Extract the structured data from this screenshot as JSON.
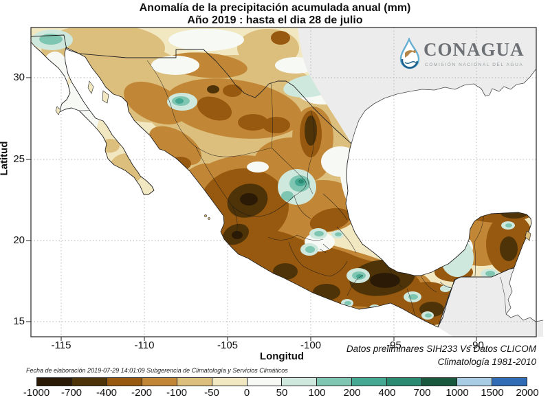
{
  "title": {
    "line1": "Anomalía de la precipitación acumulada anual (mm)",
    "line2": "Año 2019 : hasta el dia 28 de julio"
  },
  "logo": {
    "name": "CONAGUA",
    "subtitle": "COMISIÓN NACIONAL DEL AGUA"
  },
  "axes": {
    "y_label": "Latitud",
    "x_label": "Longitud",
    "y_ticks": [
      "30",
      "25",
      "20",
      "15"
    ],
    "x_ticks": [
      "-115",
      "-110",
      "-105",
      "-100",
      "-95",
      "-90"
    ]
  },
  "footnotes": {
    "elaboration": "Fecha de elaboración 2019-07-29 14:01:09 Subgerencia de Climatología y Servicios Climáticos",
    "datasets": "Datos preliminares SIH233 Vs Datos CLICOM",
    "climatology": "Climatología 1981-2010"
  },
  "colorbar": {
    "tick_labels": [
      "-1000",
      "-700",
      "-400",
      "-200",
      "-100",
      "-50",
      "0",
      "50",
      "100",
      "200",
      "400",
      "700",
      "1000",
      "1500",
      "2000"
    ],
    "levels": [
      -1000,
      -700,
      -400,
      -200,
      -100,
      -50,
      0,
      50,
      100,
      200,
      400,
      700,
      1000,
      1500,
      2000
    ],
    "colors": [
      "#2b1a05",
      "#4e3309",
      "#96590f",
      "#c28736",
      "#dcbe7d",
      "#f1e7c0",
      "#f7f9f5",
      "#cfe8dd",
      "#7fc6b2",
      "#45a892",
      "#2b8a72",
      "#17583f",
      "#a7cce4",
      "#2f6cb5"
    ]
  },
  "map": {
    "region": "México",
    "variable": "Anomalía de precipitación acumulada anual (mm)",
    "units": "mm",
    "deficit_color_example": "#96590f",
    "surplus_color_example": "#45a892",
    "masked_land_color": "#ececec",
    "sea_color": "#ffffff"
  }
}
